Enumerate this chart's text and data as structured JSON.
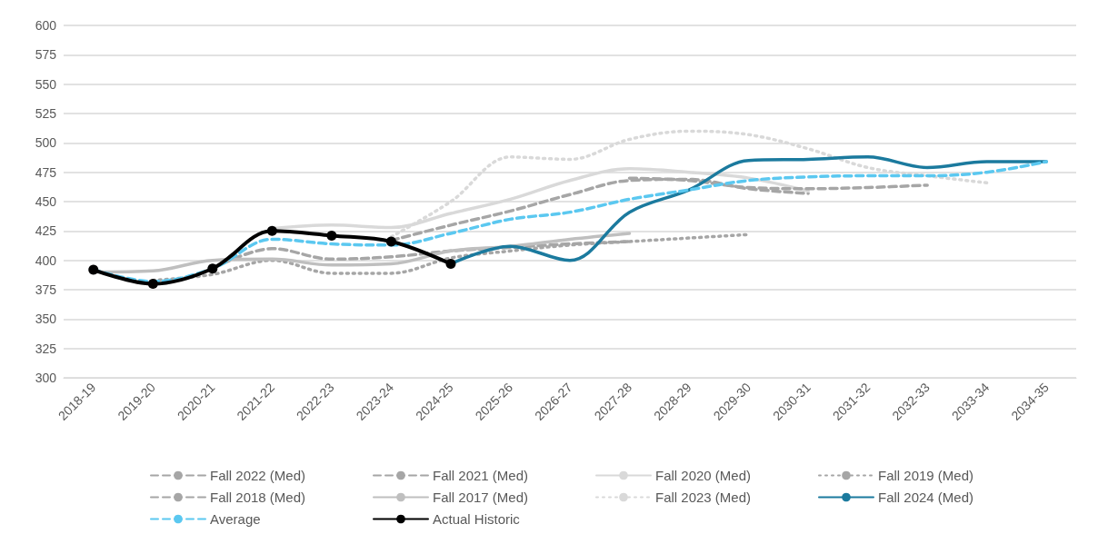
{
  "chart_data": {
    "type": "line",
    "categories": [
      "2018-19",
      "2019-20",
      "2020-21",
      "2021-22",
      "2022-23",
      "2023-24",
      "2024-25",
      "2025-26",
      "2026-27",
      "2027-28",
      "2028-29",
      "2029-30",
      "2030-31",
      "2031-32",
      "2032-33",
      "2033-34",
      "2034-35"
    ],
    "ylim": [
      300,
      600
    ],
    "yticks": [
      300,
      325,
      350,
      375,
      400,
      425,
      450,
      475,
      500,
      525,
      550,
      575,
      600
    ],
    "grid": "y",
    "legend": "bottom",
    "series": [
      {
        "name": "Fall 2022 (Med)",
        "color": "#a6a6a6",
        "line_style": "dashed",
        "values": [
          null,
          null,
          null,
          null,
          null,
          417,
          430,
          442,
          456,
          468,
          469,
          461,
          457,
          null,
          null,
          null,
          null
        ]
      },
      {
        "name": "Fall 2021 (Med)",
        "color": "#a6a6a6",
        "line_style": "dashed",
        "values": [
          null,
          null,
          393,
          410,
          401,
          403,
          408,
          411,
          414,
          416,
          null,
          null,
          null,
          null,
          null,
          null,
          null
        ]
      },
      {
        "name": "Fall 2020 (Med)",
        "color": "#d9d9d9",
        "line_style": "solid",
        "values": [
          null,
          null,
          null,
          427,
          430,
          428,
          440,
          452,
          468,
          478,
          475,
          470,
          459,
          null,
          null,
          null,
          null
        ]
      },
      {
        "name": "Fall 2019 (Med)",
        "color": "#a6a6a6",
        "line_style": "dotted",
        "values": [
          null,
          383,
          388,
          400,
          389,
          389,
          402,
          408,
          413,
          416,
          419,
          422,
          null,
          null,
          null,
          null,
          null
        ]
      },
      {
        "name": "Fall 2018 (Med)",
        "color": "#a6a6a6",
        "line_style": "dashed",
        "values": [
          null,
          null,
          null,
          null,
          null,
          null,
          null,
          null,
          null,
          470,
          468,
          462,
          461,
          462,
          464,
          null,
          null
        ]
      },
      {
        "name": "Fall 2017 (Med)",
        "color": "#bfbfbf",
        "line_style": "solid",
        "values": [
          390,
          391,
          400,
          401,
          396,
          397,
          408,
          412,
          418,
          423,
          null,
          null,
          null,
          null,
          null,
          null,
          null
        ]
      },
      {
        "name": "Fall 2023 (Med)",
        "color": "#d9d9d9",
        "line_style": "dotted",
        "values": [
          null,
          null,
          null,
          null,
          null,
          420,
          450,
          488,
          486,
          503,
          510,
          507,
          495,
          479,
          472,
          466,
          null
        ]
      },
      {
        "name": "Fall 2024 (Med)",
        "color": "#1b7a9e",
        "line_style": "solid",
        "values": [
          null,
          null,
          null,
          null,
          null,
          null,
          397,
          412,
          400,
          441,
          460,
          485,
          486,
          488,
          479,
          484,
          484
        ]
      },
      {
        "name": "Average",
        "color": "#5bc8f0",
        "line_style": "dashed",
        "values": [
          392,
          382,
          393,
          418,
          414,
          413,
          423,
          435,
          441,
          452,
          460,
          468,
          471,
          472,
          472,
          475,
          484
        ]
      },
      {
        "name": "Actual Historic",
        "color": "#000000",
        "line_style": "solid",
        "marker": "circle",
        "values": [
          392,
          380,
          393,
          425,
          421,
          416,
          397,
          null,
          null,
          null,
          null,
          null,
          null,
          null,
          null,
          null,
          null
        ]
      }
    ]
  }
}
